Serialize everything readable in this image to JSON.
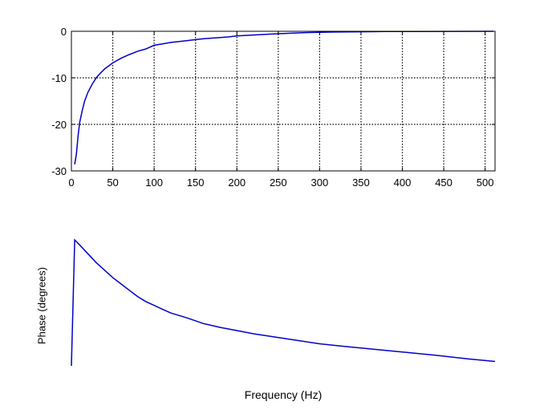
{
  "colors": {
    "background": "#ffffff",
    "series": "#0000cc",
    "axes": "#000000",
    "grid": "#000000"
  },
  "chart_data": [
    {
      "type": "line",
      "title": "",
      "xlabel": "",
      "ylabel": "",
      "xlim": [
        0,
        512
      ],
      "ylim": [
        -30,
        0
      ],
      "grid": true,
      "x_ticks": [
        0,
        50,
        100,
        150,
        200,
        250,
        300,
        350,
        400,
        450,
        500
      ],
      "x_tick_labels": [
        "0",
        "50",
        "100",
        "150",
        "200",
        "250",
        "300",
        "350",
        "400",
        "450",
        "500"
      ],
      "y_ticks": [
        -30,
        -20,
        -10,
        0
      ],
      "y_tick_labels": [
        "-30",
        "-20",
        "-10",
        "0"
      ],
      "series": [
        {
          "color": "#0000cc",
          "x": [
            4,
            6,
            8,
            10,
            13,
            16,
            20,
            25,
            30,
            35,
            40,
            50,
            60,
            70,
            80,
            90,
            100,
            110,
            120,
            130,
            140,
            150,
            160,
            175,
            190,
            200,
            220,
            240,
            260,
            280,
            300,
            320,
            350,
            380,
            420,
            460,
            510
          ],
          "y": [
            -28.6,
            -26.4,
            -22.5,
            -19.6,
            -17.1,
            -15.0,
            -13.1,
            -11.4,
            -10.0,
            -9.0,
            -8.1,
            -6.8,
            -5.8,
            -5.0,
            -4.3,
            -3.8,
            -3.0,
            -2.7,
            -2.4,
            -2.2,
            -2.0,
            -1.8,
            -1.6,
            -1.4,
            -1.2,
            -1.0,
            -0.8,
            -0.6,
            -0.45,
            -0.3,
            -0.2,
            -0.15,
            -0.1,
            -0.05,
            -0.03,
            -0.01,
            0.0
          ]
        }
      ]
    },
    {
      "type": "line",
      "title": "",
      "xlabel": "Frequency (Hz)",
      "ylabel": "Phase (degrees)",
      "xlim": [
        0,
        512
      ],
      "ylim": [
        0,
        1
      ],
      "grid": false,
      "axes_visible": false,
      "series": [
        {
          "color": "#0000cc",
          "x": [
            0,
            4,
            10,
            20,
            30,
            40,
            50,
            60,
            70,
            80,
            90,
            100,
            110,
            120,
            140,
            160,
            180,
            200,
            220,
            240,
            260,
            280,
            300,
            330,
            360,
            400,
            440,
            480,
            512
          ],
          "y": [
            0.0,
            1.0,
            0.96,
            0.89,
            0.82,
            0.76,
            0.7,
            0.65,
            0.6,
            0.55,
            0.51,
            0.48,
            0.45,
            0.42,
            0.38,
            0.335,
            0.305,
            0.28,
            0.255,
            0.235,
            0.215,
            0.195,
            0.175,
            0.155,
            0.135,
            0.11,
            0.085,
            0.055,
            0.035
          ]
        }
      ]
    }
  ]
}
